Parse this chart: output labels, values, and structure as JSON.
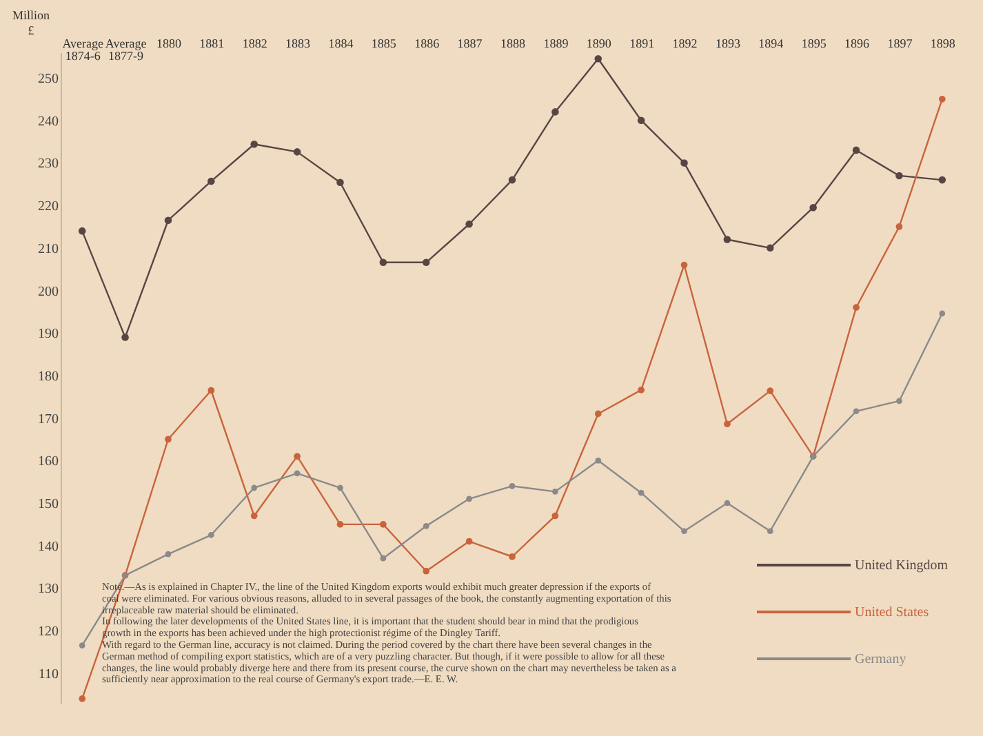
{
  "chart_data": {
    "type": "line",
    "categories": [
      "Average 1874-6",
      "Average 1877-9",
      "1880",
      "1881",
      "1882",
      "1883",
      "1884",
      "1885",
      "1886",
      "1887",
      "1888",
      "1889",
      "1890",
      "1891",
      "1892",
      "1893",
      "1894",
      "1895",
      "1896",
      "1897",
      "1898"
    ],
    "ylabel": "Million £",
    "ylim": [
      103,
      256
    ],
    "yticks": [
      110,
      120,
      130,
      140,
      150,
      160,
      170,
      180,
      190,
      200,
      210,
      220,
      230,
      240,
      250
    ],
    "series": [
      {
        "name": "United Kingdom",
        "color": "#5a4545",
        "values": [
          214,
          189,
          216.5,
          225.7,
          234.4,
          232.6,
          225.4,
          206.6,
          206.6,
          215.6,
          226,
          242,
          254.5,
          240,
          230,
          212,
          210,
          219.5,
          233,
          227,
          226
        ]
      },
      {
        "name": "United States",
        "color": "#c8643c",
        "values": [
          104,
          133,
          165,
          176.5,
          147,
          161,
          145,
          145,
          134,
          141,
          137.4,
          147,
          171,
          176.6,
          206,
          168.6,
          176.4,
          161,
          196,
          215,
          245
        ]
      },
      {
        "name": "Germany",
        "color": "#8a8a8a",
        "values": [
          116.5,
          133,
          138,
          142.5,
          153.6,
          157,
          153.6,
          137,
          144.6,
          151,
          154,
          152.7,
          160,
          152.4,
          143.4,
          150,
          143.4,
          161,
          171.6,
          174,
          194.6
        ]
      }
    ],
    "marker": "circle",
    "line_style": "solid",
    "grid": false,
    "legend": "bottom right",
    "annotations": [
      "Note.—As is explained in Chapter IV., the line of the United Kingdom exports would exhibit much greater depression if the exports of coal were eliminated. For various obvious reasons, alluded to in several passages of the book, the constantly augmenting exportation of this irreplaceable raw material should be eliminated.",
      "In following the later developments of the United States line, it is important that the student should bear in mind that the prodigious growth in the exports has been achieved under the high protectionist régime of the Dingley Tariff.",
      "With regard to the German line, accuracy is not claimed. During the period covered by the chart there have been several changes in the German method of compiling export statistics, which are of a very puzzling character. But though, if it were possible to allow for all these changes, the line would probably diverge here and there from its present course, the curve shown on the chart may nevertheless be taken as a sufficiently near approximation to the real course of Germany's export trade.—E. E. W."
    ]
  }
}
